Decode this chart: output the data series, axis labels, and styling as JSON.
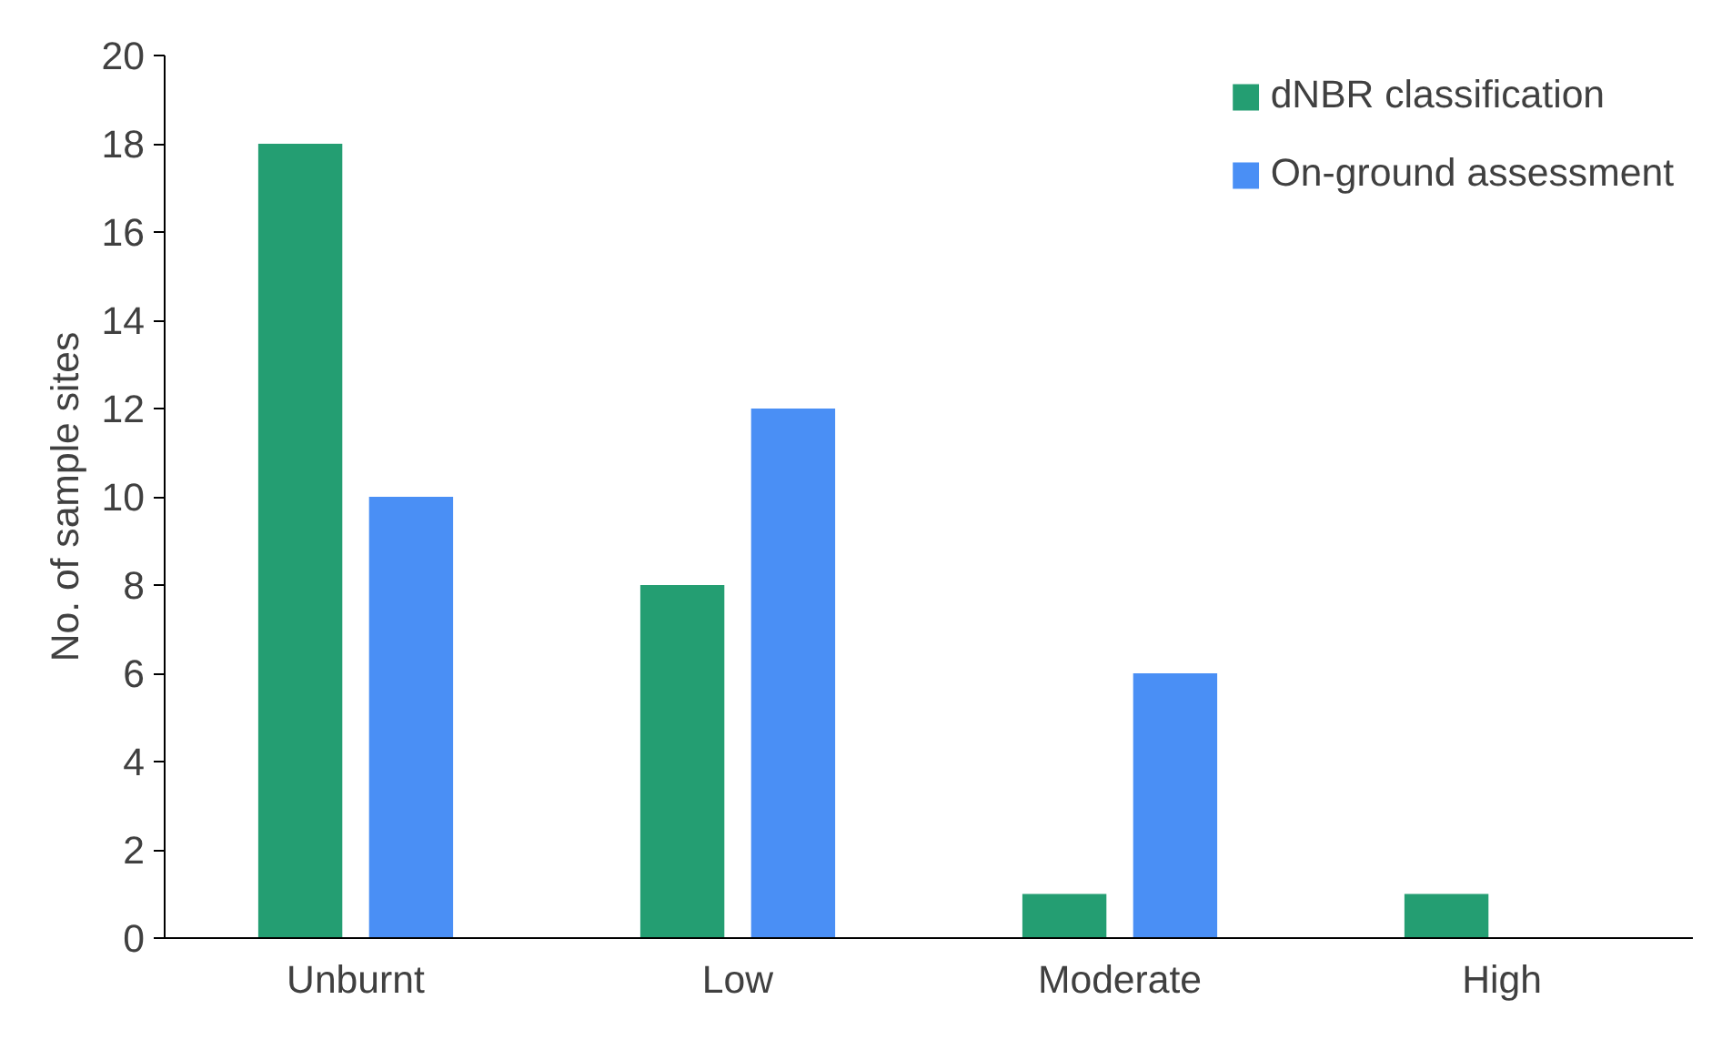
{
  "chart_data": {
    "type": "bar",
    "ylabel": "No. of sample sites",
    "categories": [
      "Unburnt",
      "Low",
      "Moderate",
      "High"
    ],
    "series": [
      {
        "name": "dNBR classification",
        "color": "#249e72",
        "values": [
          18,
          8,
          1,
          1
        ]
      },
      {
        "name": "On-ground assessment",
        "color": "#4a8ff5",
        "values": [
          10,
          12,
          6,
          0
        ]
      }
    ],
    "ylim": [
      0,
      20
    ],
    "yticks": [
      0,
      2,
      4,
      6,
      8,
      10,
      12,
      14,
      16,
      18,
      20
    ],
    "grid": false,
    "legend": "top right"
  }
}
